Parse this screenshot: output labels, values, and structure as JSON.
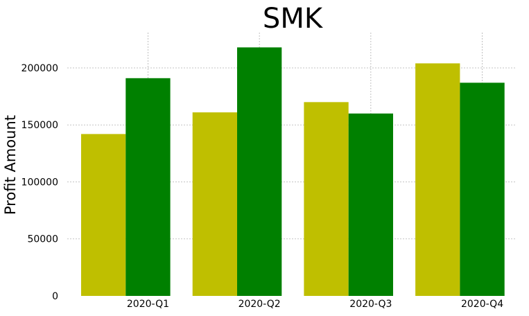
{
  "chart_data": {
    "type": "bar",
    "title": "SMK",
    "xlabel": "",
    "ylabel": "Profit Amount",
    "categories": [
      "2020-Q1",
      "2020-Q2",
      "2020-Q3",
      "2020-Q4"
    ],
    "series": [
      {
        "values": [
          142000,
          161000,
          170000,
          204000
        ],
        "color": "#bfbf00"
      },
      {
        "values": [
          191000,
          218000,
          160000,
          187000
        ],
        "color": "#008000"
      }
    ],
    "yticks": [
      "0",
      "50000",
      "100000",
      "150000",
      "200000"
    ],
    "ylim": [
      0,
      231000
    ],
    "grid": true,
    "legend": "none"
  }
}
